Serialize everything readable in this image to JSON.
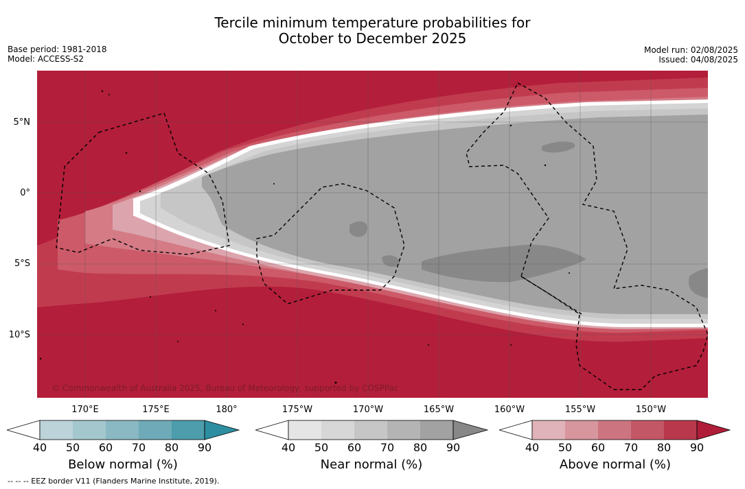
{
  "header": {
    "title_line1": "Tercile minimum temperature probabilities for",
    "title_line2": "October to December 2025",
    "base_period": "Base period: 1981-2018",
    "model": "Model: ACCESS-S2",
    "model_run": "Model run: 02/08/2025",
    "issued": "Issued: 04/08/2025"
  },
  "map": {
    "lat_labels": [
      "5°N",
      "0°",
      "5°S",
      "10°S"
    ],
    "lon_labels": [
      "170°E",
      "175°E",
      "180°",
      "175°W",
      "170°W",
      "165°W",
      "160°W",
      "155°W",
      "150°W"
    ],
    "copyright": "© Commonwealth of Australia 2025, Bureau of Meteorology, supported by COSPPac",
    "colors": {
      "above_90": "#b31e3a",
      "above_80": "#c13b4f",
      "above_70": "#cc5a68",
      "above_60": "#d47b86",
      "above_50": "#dca5ad",
      "near_50": "#d4d4d4",
      "near_60": "#c6c6c6",
      "near_70": "#a2a2a2",
      "near_80": "#888888"
    }
  },
  "colorbars": [
    {
      "title": "Below normal (%)",
      "ticks": [
        "40",
        "50",
        "60",
        "70",
        "80",
        "90"
      ],
      "colors": [
        "#bcd3da",
        "#a4c7ce",
        "#8ab8c3",
        "#6eaab7",
        "#4d9dac",
        "#2e8ea1"
      ]
    },
    {
      "title": "Near normal (%)",
      "ticks": [
        "40",
        "50",
        "60",
        "70",
        "80",
        "90"
      ],
      "colors": [
        "#e5e5e5",
        "#d7d7d7",
        "#c6c6c6",
        "#b4b4b4",
        "#a2a2a2",
        "#888888"
      ]
    },
    {
      "title": "Above normal (%)",
      "ticks": [
        "40",
        "50",
        "60",
        "70",
        "80",
        "90"
      ],
      "colors": [
        "#dfb3b9",
        "#d7959d",
        "#cc7580",
        "#c35766",
        "#b9384b",
        "#b01d38"
      ]
    }
  ],
  "footer": {
    "eez_note": "--  --  -- EEZ border V11 (Flanders Marine Institute, 2019)."
  }
}
